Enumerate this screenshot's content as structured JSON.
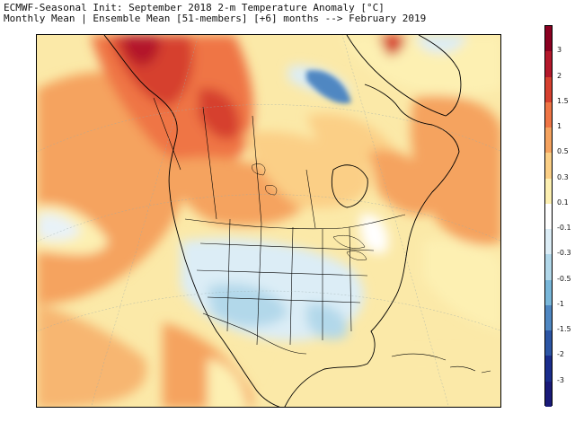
{
  "title": {
    "line1": "ECMWF-Seasonal Init: September 2018 2-m Temperature Anomaly [°C]",
    "line2": "Monthly Mean | Ensemble Mean [51-members] [+6] months --> February 2019"
  },
  "colorbar": {
    "labels": [
      "3",
      "2",
      "1.5",
      "1",
      "0.5",
      "0.3",
      "0.1",
      "-0.1",
      "-0.3",
      "-0.5",
      "-1",
      "-1.5",
      "-2",
      "-3"
    ],
    "colors": [
      "#8b0021",
      "#b4182b",
      "#d6402f",
      "#ef7545",
      "#f5a35f",
      "#fbcf86",
      "#fdf0b2",
      "#ffffff",
      "#dcedf6",
      "#b2d8ea",
      "#79b7da",
      "#4f87c2",
      "#2c55a4",
      "#1a2d8c",
      "#191a78"
    ]
  }
}
